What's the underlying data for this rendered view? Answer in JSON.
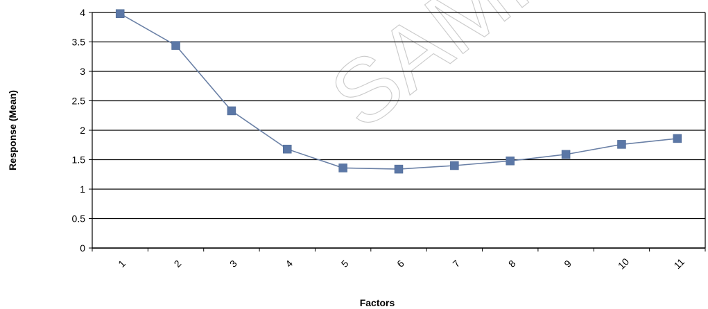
{
  "chart_data": {
    "type": "line",
    "title": "",
    "xlabel": "Factors",
    "ylabel": "Response (Mean)",
    "x": [
      "1",
      "2",
      "3",
      "4",
      "5",
      "6",
      "7",
      "8",
      "9",
      "10",
      "11"
    ],
    "series": [
      {
        "values": [
          3.98,
          3.44,
          2.33,
          1.68,
          1.36,
          1.34,
          1.4,
          1.48,
          1.59,
          1.76,
          1.86
        ],
        "color": "#6a80a6",
        "marker": "square",
        "marker_color": "#5b77a6"
      }
    ],
    "ylim": [
      0,
      4
    ],
    "yticks": [
      0,
      0.5,
      1,
      1.5,
      2,
      2.5,
      3,
      3.5,
      4
    ],
    "ytick_labels": [
      "0",
      "0.5",
      "1",
      "1.5",
      "2",
      "2.5",
      "3",
      "3.5",
      "4"
    ],
    "grid": "horizontal",
    "legend": "none",
    "watermark": "SAMPLE"
  }
}
